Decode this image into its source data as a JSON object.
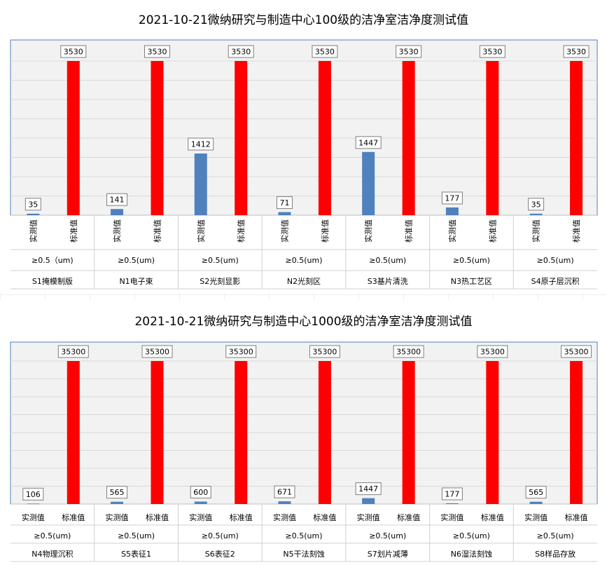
{
  "chart_data": [
    {
      "type": "bar",
      "title": "2021-10-21微纳研究与制造中心100级的洁净室洁净度测试值",
      "categories": [
        {
          "group": "S1掩模制版",
          "size": "≥0.5（um)",
          "items": [
            "实测值",
            "标准值"
          ]
        },
        {
          "group": "N1电子束",
          "size": "≥0.5(um)",
          "items": [
            "实测值",
            "标准值"
          ]
        },
        {
          "group": "S2光刻显影",
          "size": "≥0.5(um)",
          "items": [
            "实测值",
            "标准值"
          ]
        },
        {
          "group": "N2光刻区",
          "size": "≥0.5(um)",
          "items": [
            "实测值",
            "标准值"
          ]
        },
        {
          "group": "S3基片清洗",
          "size": "≥0.5(um)",
          "items": [
            "实测值",
            "标准值"
          ]
        },
        {
          "group": "N3热工艺区",
          "size": "≥0.5(um)",
          "items": [
            "实测值",
            "标准值"
          ]
        },
        {
          "group": "S4原子层沉积",
          "size": "≥0.5(um)",
          "items": [
            "实测值",
            "标准值"
          ]
        }
      ],
      "measured": [
        35,
        141,
        1412,
        71,
        1447,
        177,
        35
      ],
      "standard": [
        3530,
        3530,
        3530,
        3530,
        3530,
        3530,
        3530
      ],
      "ylim": [
        0,
        3530
      ],
      "grid": true,
      "item_label_orientation": "vertical",
      "colors": {
        "measured": "#4f81bd",
        "standard": "#ff0000"
      }
    },
    {
      "type": "bar",
      "title": "2021-10-21微纳研究与制造中心1000级的洁净室洁净度测试值",
      "categories": [
        {
          "group": "N4物理沉积",
          "size": "≥0.5(um)",
          "items": [
            "实测值",
            "标准值"
          ]
        },
        {
          "group": "S5表征1",
          "size": "≥0.5(um)",
          "items": [
            "实测值",
            "标准值"
          ]
        },
        {
          "group": "S6表征2",
          "size": "≥0.5(um)",
          "items": [
            "实测值",
            "标准值"
          ]
        },
        {
          "group": "N5干法刻蚀",
          "size": "≥0.5(um)",
          "items": [
            "实测值",
            "标准值"
          ]
        },
        {
          "group": "S7划片减薄",
          "size": "≥0.5(um)",
          "items": [
            "实测值",
            "标准值"
          ]
        },
        {
          "group": "N6湿法刻蚀",
          "size": "≥0.5(um)",
          "items": [
            "实测值",
            "标准值"
          ]
        },
        {
          "group": "S8样品存放",
          "size": "≥0.5(um)",
          "items": [
            "实测值",
            "标准值"
          ]
        }
      ],
      "measured": [
        106,
        565,
        600,
        671,
        1447,
        177,
        565
      ],
      "standard": [
        35300,
        35300,
        35300,
        35300,
        35300,
        35300,
        35300
      ],
      "ylim": [
        0,
        35300
      ],
      "grid": true,
      "item_label_orientation": "horizontal",
      "colors": {
        "measured": "#4f81bd",
        "standard": "#ff0000"
      }
    }
  ]
}
